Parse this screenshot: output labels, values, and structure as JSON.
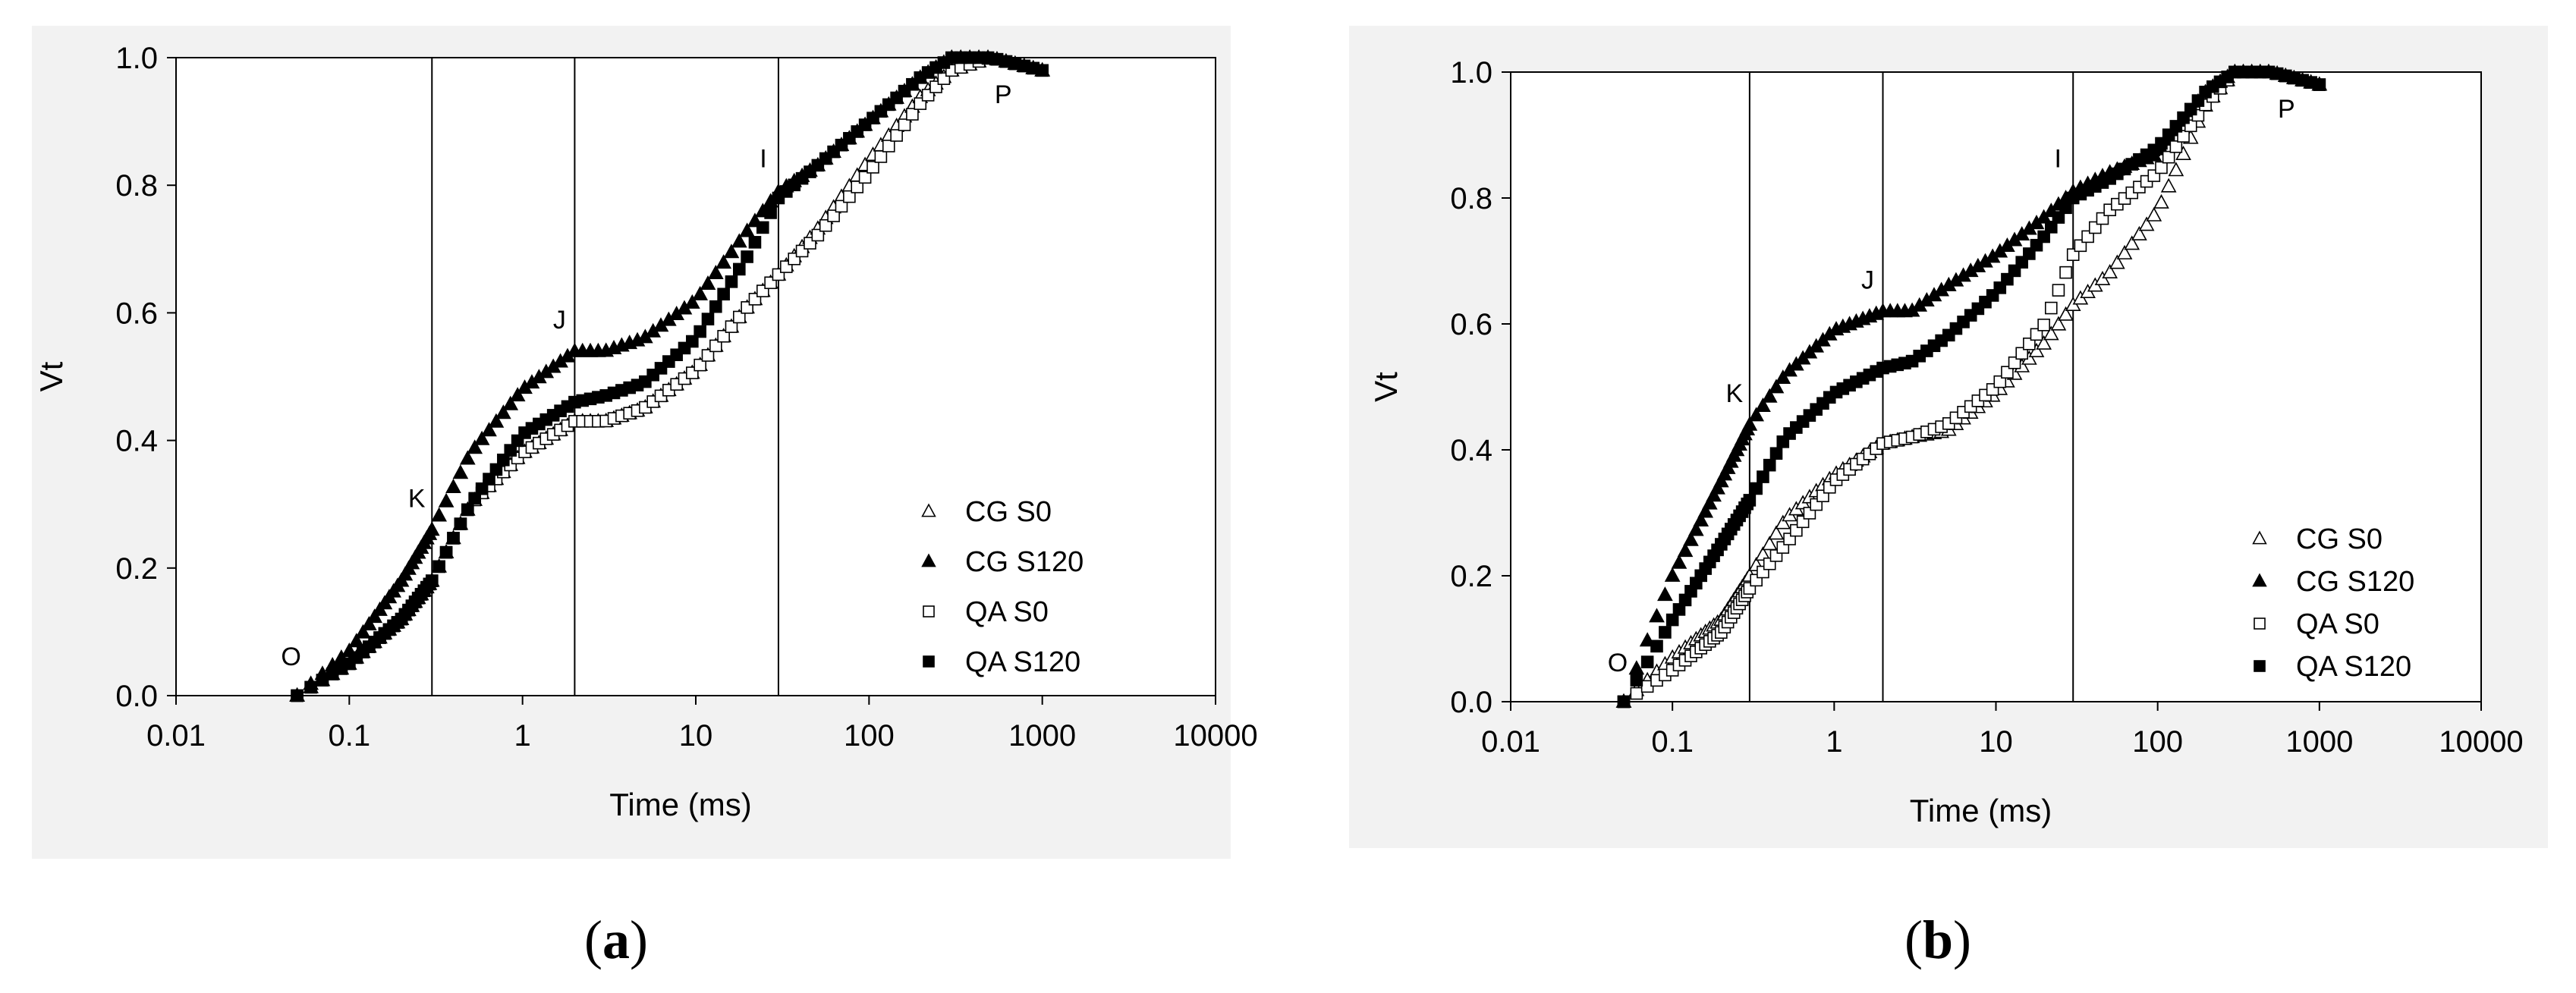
{
  "chart_data": [
    {
      "type": "scatter",
      "panel_label": "a",
      "xlabel": "Time (ms)",
      "ylabel": "Vt",
      "xscale": "log",
      "xlim": [
        0.01,
        10000
      ],
      "ylim": [
        0,
        1
      ],
      "xticks": [
        0.01,
        0.1,
        1,
        10,
        100,
        1000,
        10000
      ],
      "xtick_labels": [
        "0.01",
        "0.1",
        "1",
        "10",
        "100",
        "1000",
        "10000"
      ],
      "yticks": [
        0,
        0.2,
        0.4,
        0.6,
        0.8,
        1
      ],
      "ytick_labels": [
        "0.0",
        "0.2",
        "0.4",
        "0.6",
        "0.8",
        "1.0"
      ],
      "grid": false,
      "legend_position": "right",
      "vlines": [
        0.3,
        2,
        30
      ],
      "annotations": [
        {
          "text": "O",
          "x": 0.05,
          "y": 0.0
        },
        {
          "text": "K",
          "x": 0.3,
          "y": 0.26
        },
        {
          "text": "J",
          "x": 2,
          "y": 0.54
        },
        {
          "text": "I",
          "x": 30,
          "y": 0.79
        },
        {
          "text": "P",
          "x": 300,
          "y": 1.0
        }
      ],
      "series": [
        {
          "name": "CG S0",
          "marker": "open-triangle",
          "anchors": [
            [
              0.05,
              0
            ],
            [
              0.1,
              0.05
            ],
            [
              0.2,
              0.12
            ],
            [
              0.3,
              0.18
            ],
            [
              0.5,
              0.3
            ],
            [
              1,
              0.38
            ],
            [
              2,
              0.43
            ],
            [
              3,
              0.43
            ],
            [
              5,
              0.45
            ],
            [
              10,
              0.51
            ],
            [
              20,
              0.61
            ],
            [
              30,
              0.66
            ],
            [
              50,
              0.73
            ],
            [
              100,
              0.84
            ],
            [
              200,
              0.94
            ],
            [
              300,
              0.98
            ],
            [
              500,
              1.0
            ],
            [
              1000,
              0.98
            ]
          ]
        },
        {
          "name": "CG S120",
          "marker": "filled-triangle",
          "anchors": [
            [
              0.05,
              0
            ],
            [
              0.1,
              0.07
            ],
            [
              0.2,
              0.18
            ],
            [
              0.3,
              0.26
            ],
            [
              0.5,
              0.38
            ],
            [
              1,
              0.48
            ],
            [
              2,
              0.54
            ],
            [
              3,
              0.54
            ],
            [
              5,
              0.56
            ],
            [
              10,
              0.62
            ],
            [
              20,
              0.73
            ],
            [
              30,
              0.79
            ],
            [
              50,
              0.83
            ],
            [
              100,
              0.9
            ],
            [
              200,
              0.97
            ],
            [
              300,
              1.0
            ],
            [
              500,
              1.0
            ],
            [
              1000,
              0.98
            ]
          ]
        },
        {
          "name": "QA S0",
          "marker": "open-square",
          "anchors": [
            [
              0.05,
              0
            ],
            [
              0.1,
              0.05
            ],
            [
              0.2,
              0.12
            ],
            [
              0.3,
              0.18
            ],
            [
              0.5,
              0.3
            ],
            [
              1,
              0.38
            ],
            [
              2,
              0.43
            ],
            [
              3,
              0.43
            ],
            [
              5,
              0.45
            ],
            [
              10,
              0.51
            ],
            [
              20,
              0.61
            ],
            [
              30,
              0.66
            ],
            [
              50,
              0.72
            ],
            [
              100,
              0.82
            ],
            [
              200,
              0.93
            ],
            [
              300,
              0.98
            ],
            [
              500,
              1.0
            ],
            [
              1000,
              0.98
            ]
          ]
        },
        {
          "name": "QA S120",
          "marker": "filled-square",
          "anchors": [
            [
              0.05,
              0
            ],
            [
              0.1,
              0.05
            ],
            [
              0.2,
              0.12
            ],
            [
              0.3,
              0.18
            ],
            [
              0.5,
              0.3
            ],
            [
              1,
              0.41
            ],
            [
              2,
              0.46
            ],
            [
              3,
              0.47
            ],
            [
              5,
              0.49
            ],
            [
              10,
              0.56
            ],
            [
              20,
              0.69
            ],
            [
              30,
              0.78
            ],
            [
              50,
              0.83
            ],
            [
              100,
              0.9
            ],
            [
              200,
              0.97
            ],
            [
              300,
              1.0
            ],
            [
              500,
              1.0
            ],
            [
              1000,
              0.98
            ]
          ]
        }
      ]
    },
    {
      "type": "scatter",
      "panel_label": "b",
      "xlabel": "Time (ms)",
      "ylabel": "Vt",
      "xscale": "log",
      "xlim": [
        0.01,
        10000
      ],
      "ylim": [
        0,
        1
      ],
      "xticks": [
        0.01,
        0.1,
        1,
        10,
        100,
        1000,
        10000
      ],
      "xtick_labels": [
        "0.01",
        "0.1",
        "1",
        "10",
        "100",
        "1000",
        "10000"
      ],
      "yticks": [
        0,
        0.2,
        0.4,
        0.6,
        0.8,
        1
      ],
      "ytick_labels": [
        "0.0",
        "0.2",
        "0.4",
        "0.6",
        "0.8",
        "1.0"
      ],
      "grid": false,
      "legend_position": "right",
      "vlines": [
        0.3,
        2,
        30
      ],
      "annotations": [
        {
          "text": "O",
          "x": 0.05,
          "y": 0.0
        },
        {
          "text": "K",
          "x": 0.3,
          "y": 0.44
        },
        {
          "text": "J",
          "x": 2,
          "y": 0.62
        },
        {
          "text": "I",
          "x": 30,
          "y": 0.81
        },
        {
          "text": "P",
          "x": 300,
          "y": 1.0
        }
      ],
      "series": [
        {
          "name": "CG S0",
          "marker": "open-triangle",
          "anchors": [
            [
              0.05,
              0
            ],
            [
              0.1,
              0.07
            ],
            [
              0.2,
              0.13
            ],
            [
              0.3,
              0.2
            ],
            [
              0.5,
              0.29
            ],
            [
              1,
              0.36
            ],
            [
              2,
              0.41
            ],
            [
              3,
              0.42
            ],
            [
              5,
              0.43
            ],
            [
              10,
              0.49
            ],
            [
              20,
              0.57
            ],
            [
              30,
              0.63
            ],
            [
              50,
              0.68
            ],
            [
              100,
              0.78
            ],
            [
              200,
              0.95
            ],
            [
              300,
              1.0
            ],
            [
              500,
              1.0
            ],
            [
              1000,
              0.98
            ]
          ]
        },
        {
          "name": "CG S120",
          "marker": "filled-triangle",
          "anchors": [
            [
              0.05,
              0
            ],
            [
              0.1,
              0.2
            ],
            [
              0.2,
              0.35
            ],
            [
              0.3,
              0.44
            ],
            [
              0.5,
              0.52
            ],
            [
              1,
              0.59
            ],
            [
              2,
              0.62
            ],
            [
              3,
              0.62
            ],
            [
              5,
              0.66
            ],
            [
              10,
              0.71
            ],
            [
              20,
              0.77
            ],
            [
              30,
              0.81
            ],
            [
              50,
              0.84
            ],
            [
              100,
              0.87
            ],
            [
              200,
              0.97
            ],
            [
              300,
              1.0
            ],
            [
              500,
              1.0
            ],
            [
              1000,
              0.98
            ]
          ]
        },
        {
          "name": "QA S0",
          "marker": "open-square",
          "anchors": [
            [
              0.05,
              0
            ],
            [
              0.1,
              0.05
            ],
            [
              0.2,
              0.11
            ],
            [
              0.3,
              0.18
            ],
            [
              0.5,
              0.25
            ],
            [
              1,
              0.35
            ],
            [
              2,
              0.41
            ],
            [
              3,
              0.42
            ],
            [
              5,
              0.44
            ],
            [
              10,
              0.5
            ],
            [
              20,
              0.6
            ],
            [
              30,
              0.71
            ],
            [
              50,
              0.78
            ],
            [
              100,
              0.84
            ],
            [
              200,
              0.95
            ],
            [
              300,
              1.0
            ],
            [
              500,
              1.0
            ],
            [
              1000,
              0.98
            ]
          ]
        },
        {
          "name": "QA S120",
          "marker": "filled-square",
          "anchors": [
            [
              0.05,
              0
            ],
            [
              0.1,
              0.13
            ],
            [
              0.2,
              0.25
            ],
            [
              0.3,
              0.32
            ],
            [
              0.5,
              0.42
            ],
            [
              1,
              0.49
            ],
            [
              2,
              0.53
            ],
            [
              3,
              0.54
            ],
            [
              5,
              0.58
            ],
            [
              10,
              0.65
            ],
            [
              20,
              0.74
            ],
            [
              30,
              0.8
            ],
            [
              50,
              0.83
            ],
            [
              100,
              0.88
            ],
            [
              200,
              0.97
            ],
            [
              300,
              1.0
            ],
            [
              500,
              1.0
            ],
            [
              1000,
              0.98
            ]
          ]
        }
      ]
    }
  ]
}
